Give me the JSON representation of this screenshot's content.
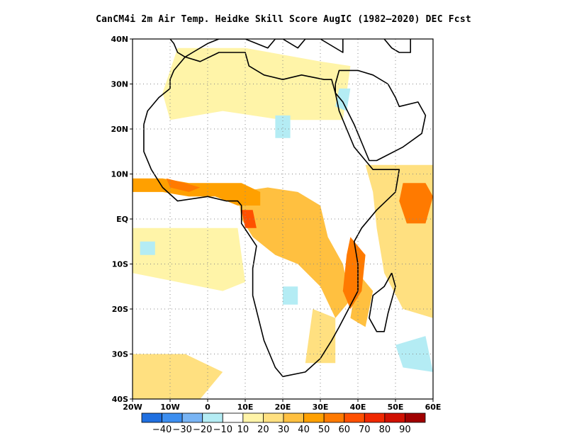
{
  "title": "CanCM4i  2m Air Temp. Heidke Skill Score AugIC (1982–2020) DEC Fcst",
  "map": {
    "lon_range": [
      -20,
      60
    ],
    "lat_range": [
      -40,
      40
    ],
    "x_ticks": [
      {
        "value": -20,
        "label": "20W"
      },
      {
        "value": -10,
        "label": "10W"
      },
      {
        "value": 0,
        "label": "0"
      },
      {
        "value": 10,
        "label": "10E"
      },
      {
        "value": 20,
        "label": "20E"
      },
      {
        "value": 30,
        "label": "30E"
      },
      {
        "value": 40,
        "label": "40E"
      },
      {
        "value": 50,
        "label": "50E"
      },
      {
        "value": 60,
        "label": "60E"
      }
    ],
    "y_ticks": [
      {
        "value": 40,
        "label": "40N"
      },
      {
        "value": 30,
        "label": "30N"
      },
      {
        "value": 20,
        "label": "20N"
      },
      {
        "value": 10,
        "label": "10N"
      },
      {
        "value": 0,
        "label": "EQ"
      },
      {
        "value": -10,
        "label": "10S"
      },
      {
        "value": -20,
        "label": "20S"
      },
      {
        "value": -30,
        "label": "30S"
      },
      {
        "value": -40,
        "label": "40S"
      }
    ],
    "gridlines": "dotted",
    "skill_regions": [
      {
        "name": "gulf-of-guinea-coast",
        "level": 40,
        "lonlat": [
          [
            -20,
            9
          ],
          [
            -12,
            9
          ],
          [
            -5,
            8
          ],
          [
            2,
            8
          ],
          [
            9,
            8
          ],
          [
            14,
            6
          ],
          [
            14,
            3
          ],
          [
            8,
            3
          ],
          [
            2,
            5
          ],
          [
            -5,
            5
          ],
          [
            -12,
            6
          ],
          [
            -20,
            6
          ]
        ]
      },
      {
        "name": "guinea-coast-core",
        "level": 50,
        "lonlat": [
          [
            -11,
            9
          ],
          [
            -6,
            8
          ],
          [
            -2,
            7
          ],
          [
            -5,
            6
          ],
          [
            -10,
            7
          ]
        ]
      },
      {
        "name": "central-africa-band",
        "level": 30,
        "lonlat": [
          [
            8,
            6
          ],
          [
            16,
            7
          ],
          [
            24,
            6
          ],
          [
            30,
            3
          ],
          [
            32,
            -4
          ],
          [
            36,
            -10
          ],
          [
            38,
            -18
          ],
          [
            34,
            -22
          ],
          [
            30,
            -15
          ],
          [
            24,
            -10
          ],
          [
            18,
            -8
          ],
          [
            12,
            -4
          ],
          [
            9,
            0
          ]
        ]
      },
      {
        "name": "congo-core",
        "level": 60,
        "lonlat": [
          [
            9,
            2
          ],
          [
            12,
            2
          ],
          [
            13,
            -2
          ],
          [
            10,
            -2
          ]
        ]
      },
      {
        "name": "east-africa-coast",
        "level": 50,
        "lonlat": [
          [
            38,
            -4
          ],
          [
            42,
            -8
          ],
          [
            41,
            -16
          ],
          [
            38,
            -20
          ],
          [
            36,
            -16
          ],
          [
            37,
            -8
          ]
        ]
      },
      {
        "name": "somalia-offshore",
        "level": 50,
        "lonlat": [
          [
            52,
            8
          ],
          [
            58,
            8
          ],
          [
            60,
            5
          ],
          [
            58,
            -1
          ],
          [
            53,
            -1
          ],
          [
            51,
            4
          ]
        ]
      },
      {
        "name": "indian-ocean-east",
        "level": 20,
        "lonlat": [
          [
            42,
            12
          ],
          [
            60,
            12
          ],
          [
            60,
            -22
          ],
          [
            52,
            -20
          ],
          [
            47,
            -12
          ],
          [
            45,
            -2
          ],
          [
            44,
            6
          ]
        ]
      },
      {
        "name": "north-africa-light",
        "level": 10,
        "lonlat": [
          [
            -8,
            38
          ],
          [
            10,
            38
          ],
          [
            30,
            35
          ],
          [
            38,
            34
          ],
          [
            36,
            22
          ],
          [
            20,
            22
          ],
          [
            4,
            24
          ],
          [
            -10,
            22
          ],
          [
            -12,
            28
          ]
        ]
      },
      {
        "name": "south-atlantic-light",
        "level": 10,
        "lonlat": [
          [
            -20,
            -2
          ],
          [
            8,
            -2
          ],
          [
            10,
            -14
          ],
          [
            4,
            -16
          ],
          [
            -8,
            -14
          ],
          [
            -20,
            -12
          ]
        ]
      },
      {
        "name": "south-atlantic-southwest",
        "level": 20,
        "lonlat": [
          [
            -20,
            -30
          ],
          [
            -6,
            -30
          ],
          [
            4,
            -34
          ],
          [
            -2,
            -40
          ],
          [
            -20,
            -40
          ]
        ]
      },
      {
        "name": "southern-africa-east",
        "level": 20,
        "lonlat": [
          [
            28,
            -20
          ],
          [
            34,
            -22
          ],
          [
            34,
            -32
          ],
          [
            26,
            -32
          ]
        ]
      },
      {
        "name": "madagascar-channel",
        "level": 30,
        "lonlat": [
          [
            40,
            -12
          ],
          [
            44,
            -16
          ],
          [
            42,
            -24
          ],
          [
            38,
            -22
          ]
        ]
      },
      {
        "name": "sahara-negative",
        "level": -10,
        "lonlat": [
          [
            18,
            23
          ],
          [
            22,
            23
          ],
          [
            22,
            18
          ],
          [
            18,
            18
          ]
        ]
      },
      {
        "name": "arabia-negative",
        "level": -10,
        "lonlat": [
          [
            35,
            29
          ],
          [
            38,
            29
          ],
          [
            37,
            24
          ],
          [
            34,
            25
          ]
        ]
      },
      {
        "name": "atlantic-negative",
        "level": -10,
        "lonlat": [
          [
            -18,
            -5
          ],
          [
            -14,
            -5
          ],
          [
            -14,
            -8
          ],
          [
            -18,
            -8
          ]
        ]
      },
      {
        "name": "south-indian-negative",
        "level": -10,
        "lonlat": [
          [
            50,
            -28
          ],
          [
            58,
            -26
          ],
          [
            60,
            -34
          ],
          [
            52,
            -33
          ]
        ]
      },
      {
        "name": "angola-negative",
        "level": -10,
        "lonlat": [
          [
            20,
            -15
          ],
          [
            24,
            -15
          ],
          [
            24,
            -19
          ],
          [
            20,
            -19
          ]
        ]
      }
    ],
    "coastline_africa": [
      [
        -17,
        21
      ],
      [
        -16,
        24
      ],
      [
        -13,
        27
      ],
      [
        -10,
        29
      ],
      [
        -10,
        31
      ],
      [
        -9,
        33
      ],
      [
        -6,
        36
      ],
      [
        -2,
        35
      ],
      [
        3,
        37
      ],
      [
        10,
        37
      ],
      [
        11,
        34
      ],
      [
        15,
        32
      ],
      [
        20,
        31
      ],
      [
        25,
        32
      ],
      [
        31,
        31
      ],
      [
        33,
        31
      ],
      [
        34,
        28
      ],
      [
        35,
        24
      ],
      [
        37,
        20
      ],
      [
        39,
        16
      ],
      [
        42,
        13
      ],
      [
        44,
        11
      ],
      [
        51,
        11
      ],
      [
        50,
        6
      ],
      [
        45,
        2
      ],
      [
        41,
        -2
      ],
      [
        39,
        -5
      ],
      [
        40,
        -10
      ],
      [
        40,
        -16
      ],
      [
        35,
        -24
      ],
      [
        33,
        -27
      ],
      [
        30,
        -31
      ],
      [
        26,
        -34
      ],
      [
        20,
        -35
      ],
      [
        18,
        -33
      ],
      [
        15,
        -27
      ],
      [
        12,
        -17
      ],
      [
        12,
        -11
      ],
      [
        13,
        -6
      ],
      [
        9,
        -1
      ],
      [
        9,
        3
      ],
      [
        8,
        4
      ],
      [
        5,
        4
      ],
      [
        0,
        5
      ],
      [
        -8,
        4
      ],
      [
        -12,
        7
      ],
      [
        -15,
        11
      ],
      [
        -17,
        15
      ],
      [
        -17,
        21
      ]
    ],
    "coastline_arabia": [
      [
        34,
        28
      ],
      [
        36,
        26
      ],
      [
        39,
        21
      ],
      [
        41,
        17
      ],
      [
        43,
        13
      ],
      [
        45,
        13
      ],
      [
        52,
        16
      ],
      [
        57,
        19
      ],
      [
        58,
        23
      ],
      [
        56,
        26
      ],
      [
        51,
        25
      ],
      [
        50,
        27
      ],
      [
        48,
        30
      ],
      [
        44,
        32
      ],
      [
        40,
        33
      ],
      [
        35,
        33
      ],
      [
        34,
        30
      ],
      [
        34,
        28
      ]
    ],
    "coastline_madagascar": [
      [
        49,
        -12
      ],
      [
        50,
        -15
      ],
      [
        48,
        -21
      ],
      [
        47,
        -25
      ],
      [
        45,
        -25
      ],
      [
        43,
        -22
      ],
      [
        44,
        -17
      ],
      [
        47,
        -15
      ],
      [
        49,
        -12
      ]
    ],
    "coastline_europe": [
      [
        -10,
        40
      ],
      [
        -9,
        39
      ],
      [
        -8,
        37
      ],
      [
        -6,
        36
      ],
      [
        -4,
        37
      ],
      [
        0,
        39
      ],
      [
        3,
        40
      ],
      [
        10,
        40
      ],
      [
        16,
        38
      ],
      [
        18,
        40
      ],
      [
        20,
        40
      ],
      [
        24,
        38
      ],
      [
        26,
        40
      ],
      [
        30,
        40
      ],
      [
        36,
        37
      ],
      [
        36,
        40
      ]
    ],
    "coastline_caspian": [
      [
        47,
        40
      ],
      [
        49,
        38
      ],
      [
        51,
        37
      ],
      [
        54,
        37
      ],
      [
        54,
        40
      ]
    ],
    "colorbar": {
      "levels": [
        {
          "label": "−40",
          "color": "#1f6fe0"
        },
        {
          "label": "−30",
          "color": "#3c8ef0"
        },
        {
          "label": "−20",
          "color": "#78b4f4"
        },
        {
          "label": "−10",
          "color": "#b4ecf4"
        },
        {
          "label": "",
          "color": "#ffffff"
        },
        {
          "label": "10",
          "color": "#fff4a8"
        },
        {
          "label": "20",
          "color": "#ffe080"
        },
        {
          "label": "30",
          "color": "#ffc040"
        },
        {
          "label": "40",
          "color": "#ffa000"
        },
        {
          "label": "50",
          "color": "#ff7a00"
        },
        {
          "label": "60",
          "color": "#ff5000"
        },
        {
          "label": "70",
          "color": "#f02800"
        },
        {
          "label": "80",
          "color": "#d01000"
        },
        {
          "label": "90",
          "color": "#a00000"
        }
      ],
      "tick_labels": [
        "−40",
        "−30",
        "−20",
        "−10",
        "10",
        "20",
        "30",
        "40",
        "50",
        "60",
        "70",
        "80",
        "90"
      ]
    }
  }
}
